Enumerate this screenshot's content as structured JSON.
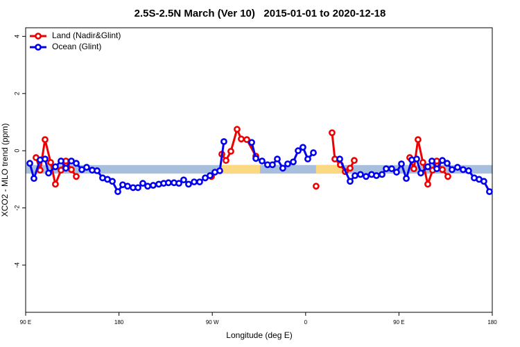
{
  "chart_data": {
    "type": "line",
    "title": "2.5S-2.5N March (Ver 10)   2015-01-01 to 2020-12-18",
    "x_label": "Longitude (deg E)",
    "y_label": "XCO2 - MLO trend (ppm)",
    "xlim": [
      90,
      540
    ],
    "ylim": [
      -5.65,
      4.3
    ],
    "xticks": [
      {
        "value": 90,
        "label": "90 E"
      },
      {
        "value": 180,
        "label": "180"
      },
      {
        "value": 270,
        "label": "90 W"
      },
      {
        "value": 360,
        "label": "0"
      },
      {
        "value": 450,
        "label": "90 E"
      },
      {
        "value": 540,
        "label": "180"
      }
    ],
    "yticks": [
      -4,
      -2,
      0,
      2,
      4
    ],
    "legend_position": "top-left",
    "bands": [
      {
        "x": [
          90,
          540
        ],
        "y": [
          -0.8,
          -0.5
        ],
        "color": "#a7bfdd"
      },
      {
        "x": [
          279,
          316
        ],
        "y": [
          -0.8,
          -0.5
        ],
        "color": "#fdd882"
      },
      {
        "x": [
          370,
          396
        ],
        "y": [
          -0.8,
          -0.5
        ],
        "color": "#fdd882"
      }
    ],
    "series": [
      {
        "name": "Land (Nadir&Glint)",
        "color": "#ee0000",
        "x": [
          100.0,
          104.0,
          108.7,
          114.1,
          118.7,
          124.1,
          128.8,
          134.1,
          138.8,
          null,
          269.2,
          null,
          279.2,
          283.2,
          287.9,
          293.9,
          297.9,
          303.3,
          312.0,
          null,
          370.1,
          null,
          385.5,
          388.2,
          393.5,
          398.2,
          402.9,
          406.9,
          null,
          460.4,
          464.4,
          468.4,
          473.1,
          477.8,
          482.5,
          486.5,
          491.9,
          497.2
        ],
        "values": [
          -0.24,
          -0.68,
          0.39,
          -0.41,
          -1.17,
          -0.68,
          -0.36,
          -0.66,
          -0.9,
          null,
          -0.9,
          null,
          -0.12,
          -0.34,
          -0.02,
          0.75,
          0.41,
          0.39,
          -0.19,
          null,
          -1.24,
          null,
          0.63,
          -0.29,
          -0.49,
          -0.73,
          -0.61,
          -0.34,
          null,
          -0.24,
          -0.63,
          0.39,
          -0.41,
          -1.17,
          -0.68,
          -0.36,
          -0.66,
          -0.9
        ]
      },
      {
        "name": "Ocean (Glint)",
        "color": "#0000ee",
        "x": [
          94.0,
          98.0,
          104.0,
          108.7,
          112.1,
          118.7,
          124.1,
          128.8,
          134.1,
          138.8,
          144.2,
          148.8,
          154.2,
          158.9,
          164.2,
          168.9,
          173.6,
          178.9,
          183.6,
          188.3,
          193.6,
          198.3,
          203.0,
          207.7,
          213.0,
          218.4,
          223.1,
          227.7,
          233.1,
          237.8,
          242.4,
          247.1,
          252.5,
          257.8,
          263.2,
          267.8,
          272.5,
          277.2,
          281.2,
          null,
          308.0,
          312.0,
          318.0,
          323.3,
          328.0,
          332.7,
          338.0,
          342.7,
          348.1,
          352.8,
          357.4,
          362.1,
          367.5,
          null,
          392.9,
          402.9,
          407.6,
          412.9,
          418.3,
          423.6,
          428.3,
          433.7,
          437.7,
          443.0,
          447.7,
          452.4,
          457.1,
          462.4,
          467.1,
          471.1,
          477.8,
          481.8,
          486.5,
          491.9,
          496.5,
          501.2,
          506.5,
          511.9,
          517.2,
          522.6,
          527.3,
          531.9,
          537.3
        ],
        "values": [
          -0.44,
          -0.97,
          -0.32,
          -0.29,
          -0.78,
          -0.56,
          -0.36,
          -0.61,
          -0.36,
          -0.44,
          -0.66,
          -0.58,
          -0.68,
          -0.7,
          -0.95,
          -1.0,
          -1.07,
          -1.43,
          -1.19,
          -1.24,
          -1.29,
          -1.29,
          -1.14,
          -1.24,
          -1.21,
          -1.17,
          -1.14,
          -1.12,
          -1.12,
          -1.14,
          -1.02,
          -1.17,
          -1.09,
          -1.09,
          -0.95,
          -0.87,
          -0.75,
          -0.7,
          0.32,
          null,
          0.29,
          -0.27,
          -0.36,
          -0.49,
          -0.49,
          -0.29,
          -0.61,
          -0.46,
          -0.39,
          0.0,
          0.12,
          -0.29,
          -0.07,
          null,
          -0.29,
          -1.07,
          -0.87,
          -0.83,
          -0.9,
          -0.83,
          -0.87,
          -0.83,
          -0.63,
          -0.63,
          -0.75,
          -0.46,
          -0.97,
          -0.32,
          -0.29,
          -0.78,
          -0.56,
          -0.36,
          -0.63,
          -0.34,
          -0.44,
          -0.66,
          -0.58,
          -0.66,
          -0.7,
          -0.95,
          -1.0,
          -1.07,
          -1.43
        ]
      }
    ]
  }
}
